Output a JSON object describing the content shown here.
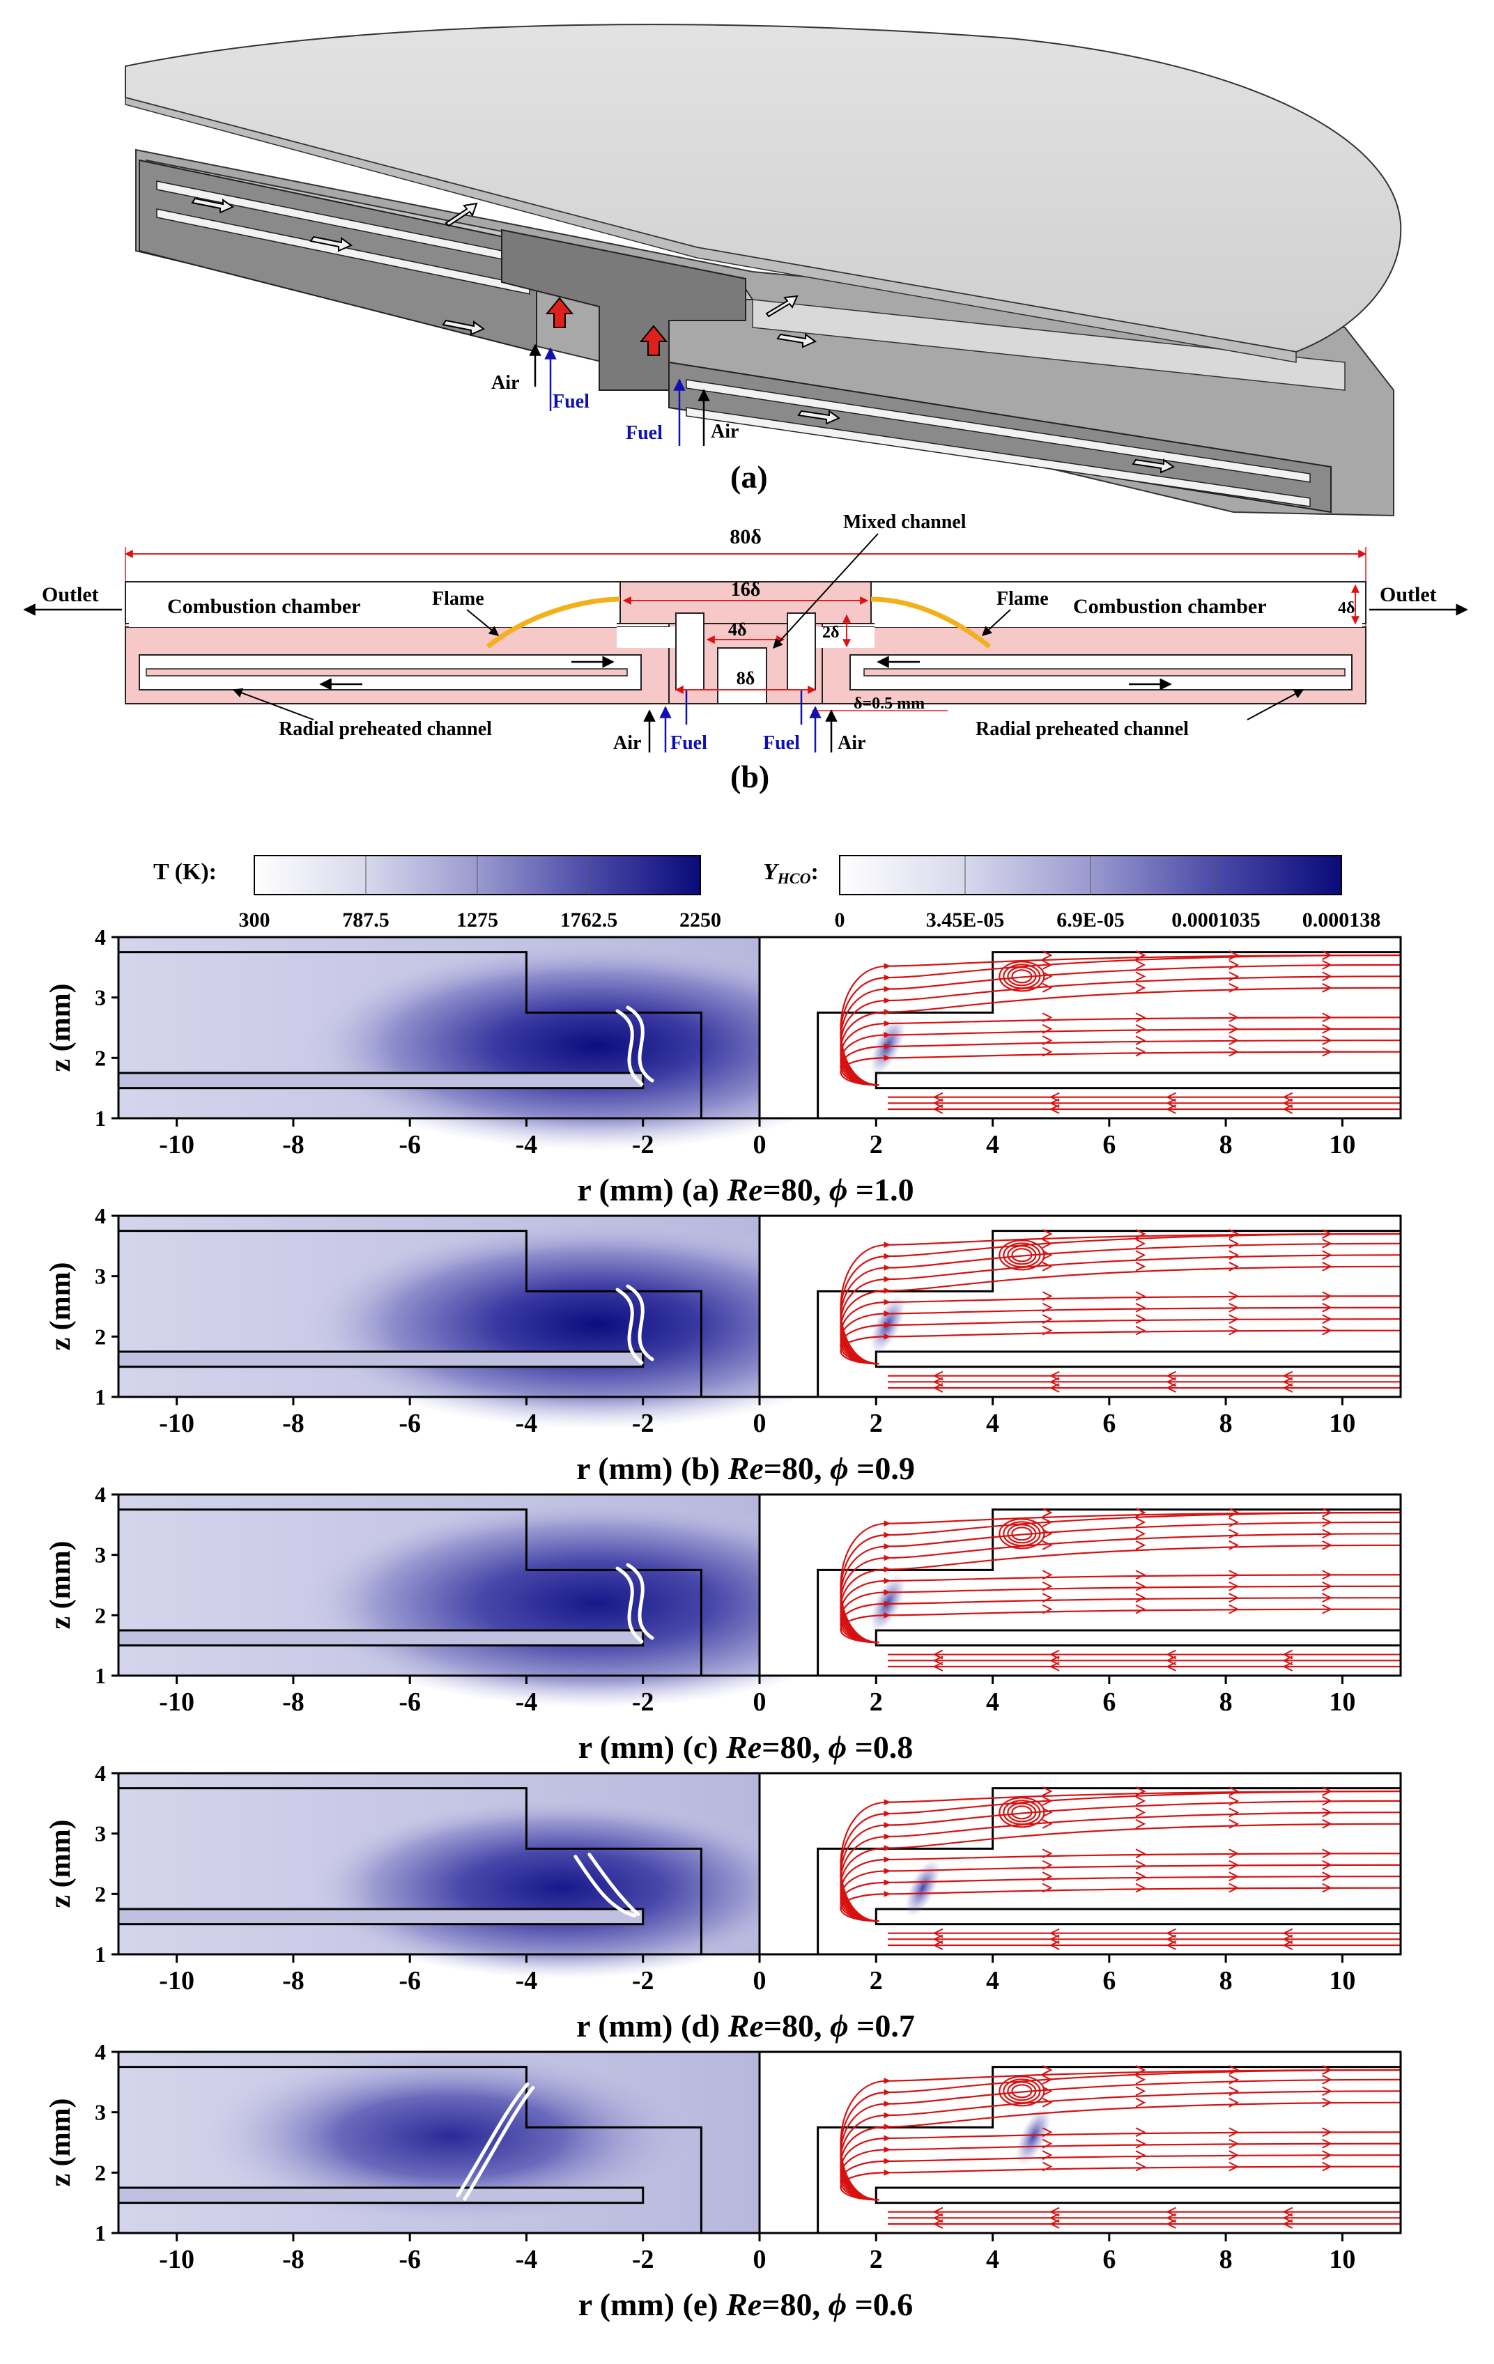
{
  "panel_a": {
    "caption": "(a)",
    "air": "Air",
    "fuel": "Fuel"
  },
  "panel_b": {
    "caption": "(b)",
    "width": "80δ",
    "mixed_channel": "Mixed channel",
    "w16": "16δ",
    "w4": "4δ",
    "w8": "8δ",
    "h2": "2δ",
    "h4": "4δ",
    "delta_note": "δ=0.5 mm",
    "outlet": "Outlet",
    "combustion_chamber": "Combustion chamber",
    "flame": "Flame",
    "radial_channel": "Radial preheated channel",
    "air": "Air",
    "fuel": "Fuel"
  },
  "colorbars": {
    "T_label": "T (K):",
    "T_ticks": [
      "300",
      "787.5",
      "1275",
      "1762.5",
      "2250"
    ],
    "Y_label": "Y",
    "Y_sub": "HCO",
    "Y_colon": ":",
    "Y_ticks": [
      "0",
      "3.45E-05",
      "6.9E-05",
      "0.0001035",
      "0.000138"
    ],
    "colors": {
      "low": "#ffffff",
      "high": "#0a0a7a"
    }
  },
  "axes": {
    "xlabel": "r (mm)",
    "ylabel": "z (mm)",
    "x_ticks": [
      "-10",
      "-8",
      "-6",
      "-4",
      "-2",
      "0",
      "2",
      "4",
      "6",
      "8",
      "10"
    ],
    "y_ticks": [
      "1",
      "2",
      "3",
      "4"
    ]
  },
  "chart_data": {
    "type": "heatmap",
    "x_range": [
      -11,
      11
    ],
    "y_range": [
      1,
      4
    ],
    "xlabel": "r (mm)",
    "ylabel": "z (mm)",
    "panels": [
      {
        "label": "(a)",
        "Re": "80",
        "phi": "1.0",
        "flame_r": -2.2,
        "flame_z": 2.2,
        "T_peak": 2250
      },
      {
        "label": "(b)",
        "Re": "80",
        "phi": "0.9",
        "flame_r": -2.2,
        "flame_z": 2.2,
        "T_peak": 2200
      },
      {
        "label": "(c)",
        "Re": "80",
        "phi": "0.8",
        "flame_r": -2.2,
        "flame_z": 2.2,
        "T_peak": 2100
      },
      {
        "label": "(d)",
        "Re": "80",
        "phi": "0.7",
        "flame_r": -2.8,
        "flame_z": 2.1,
        "T_peak": 1950
      },
      {
        "label": "(e)",
        "Re": "80",
        "phi": "0.6",
        "flame_r": -4.7,
        "flame_z": 2.6,
        "T_peak": 1700
      }
    ]
  },
  "panel_captions": [
    {
      "tag": "(a) ",
      "Re": "Re",
      "re_val": "=80, ",
      "phi": "ϕ",
      "phi_val": " =1.0"
    },
    {
      "tag": "(b) ",
      "Re": "Re",
      "re_val": "=80, ",
      "phi": "ϕ",
      "phi_val": " =0.9"
    },
    {
      "tag": "(c) ",
      "Re": "Re",
      "re_val": "=80, ",
      "phi": "ϕ",
      "phi_val": " =0.8"
    },
    {
      "tag": "(d) ",
      "Re": "Re",
      "re_val": "=80, ",
      "phi": "ϕ",
      "phi_val": " =0.7"
    },
    {
      "tag": "(e) ",
      "Re": "Re",
      "re_val": "=80, ",
      "phi": "ϕ",
      "phi_val": " =0.6"
    }
  ]
}
